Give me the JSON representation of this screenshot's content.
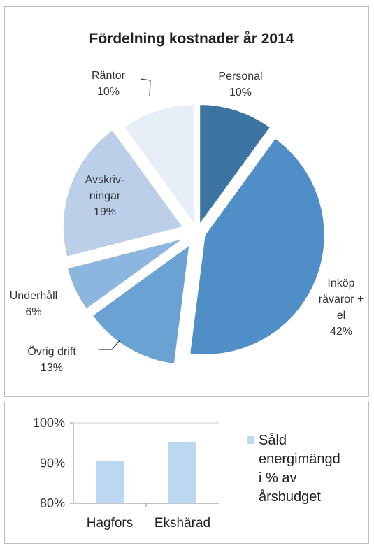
{
  "chart_data": [
    {
      "type": "pie",
      "title": "Fördelning kostnader år 2014",
      "slices": [
        {
          "label_lines": [
            "Personal",
            "10%"
          ],
          "value": 10,
          "color": "#3b74a3"
        },
        {
          "label_lines": [
            "Inköp",
            "råvaror +",
            "el",
            "42%"
          ],
          "value": 42,
          "color": "#4f8ec6"
        },
        {
          "label_lines": [
            "Övrig drift",
            "13%"
          ],
          "value": 13,
          "color": "#6aa2d3"
        },
        {
          "label_lines": [
            "Underhåll",
            "6%"
          ],
          "value": 6,
          "color": "#8cb6de"
        },
        {
          "label_lines": [
            "Avskriv-",
            "ningar",
            "19%"
          ],
          "value": 19,
          "color": "#bccfe9"
        },
        {
          "label_lines": [
            "Räntor",
            "10%"
          ],
          "value": 10,
          "color": "#e7eef8"
        }
      ]
    },
    {
      "type": "bar",
      "categories": [
        "Hagfors",
        "Ekshärad"
      ],
      "values": [
        90.5,
        95.2
      ],
      "ylim": [
        80,
        100
      ],
      "yticks": [
        "80%",
        "90%",
        "100%"
      ],
      "grid": true,
      "legend_position": "right",
      "series": [
        {
          "name_lines": [
            "Såld",
            "energimängd",
            "i % av",
            "årsbudget"
          ],
          "color": "#bcd8f1"
        }
      ]
    }
  ]
}
